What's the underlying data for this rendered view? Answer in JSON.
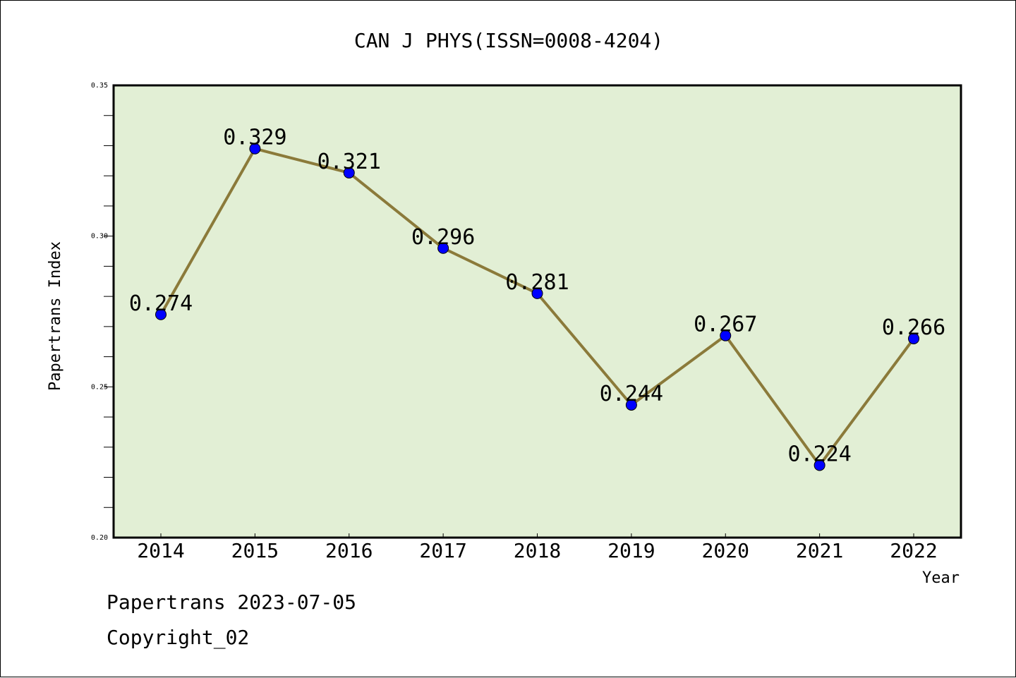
{
  "chart_data": {
    "type": "line",
    "title": "CAN J PHYS(ISSN=0008-4204)",
    "xlabel": "Year",
    "ylabel": "Papertrans Index",
    "categories": [
      "2014",
      "2015",
      "2016",
      "2017",
      "2018",
      "2019",
      "2020",
      "2021",
      "2022"
    ],
    "values": [
      0.274,
      0.329,
      0.321,
      0.296,
      0.281,
      0.244,
      0.267,
      0.224,
      0.266
    ],
    "data_labels": [
      "0.274",
      "0.329",
      "0.321",
      "0.296",
      "0.281",
      "0.244",
      "0.267",
      "0.224",
      "0.266"
    ],
    "ylim": [
      0.2,
      0.35
    ],
    "y_ticks": [
      "0.20",
      "0.25",
      "0.30",
      "0.35"
    ],
    "y_tick_values": [
      0.2,
      0.25,
      0.3,
      0.35
    ],
    "y_minor_step": 0.01,
    "grid": false,
    "colors": {
      "plot_background": "#e2efd5",
      "line": "#8b7a3a",
      "marker": "#0000ff"
    }
  },
  "footer": {
    "line1": "Papertrans 2023-07-05",
    "line2": "Copyright_02"
  }
}
